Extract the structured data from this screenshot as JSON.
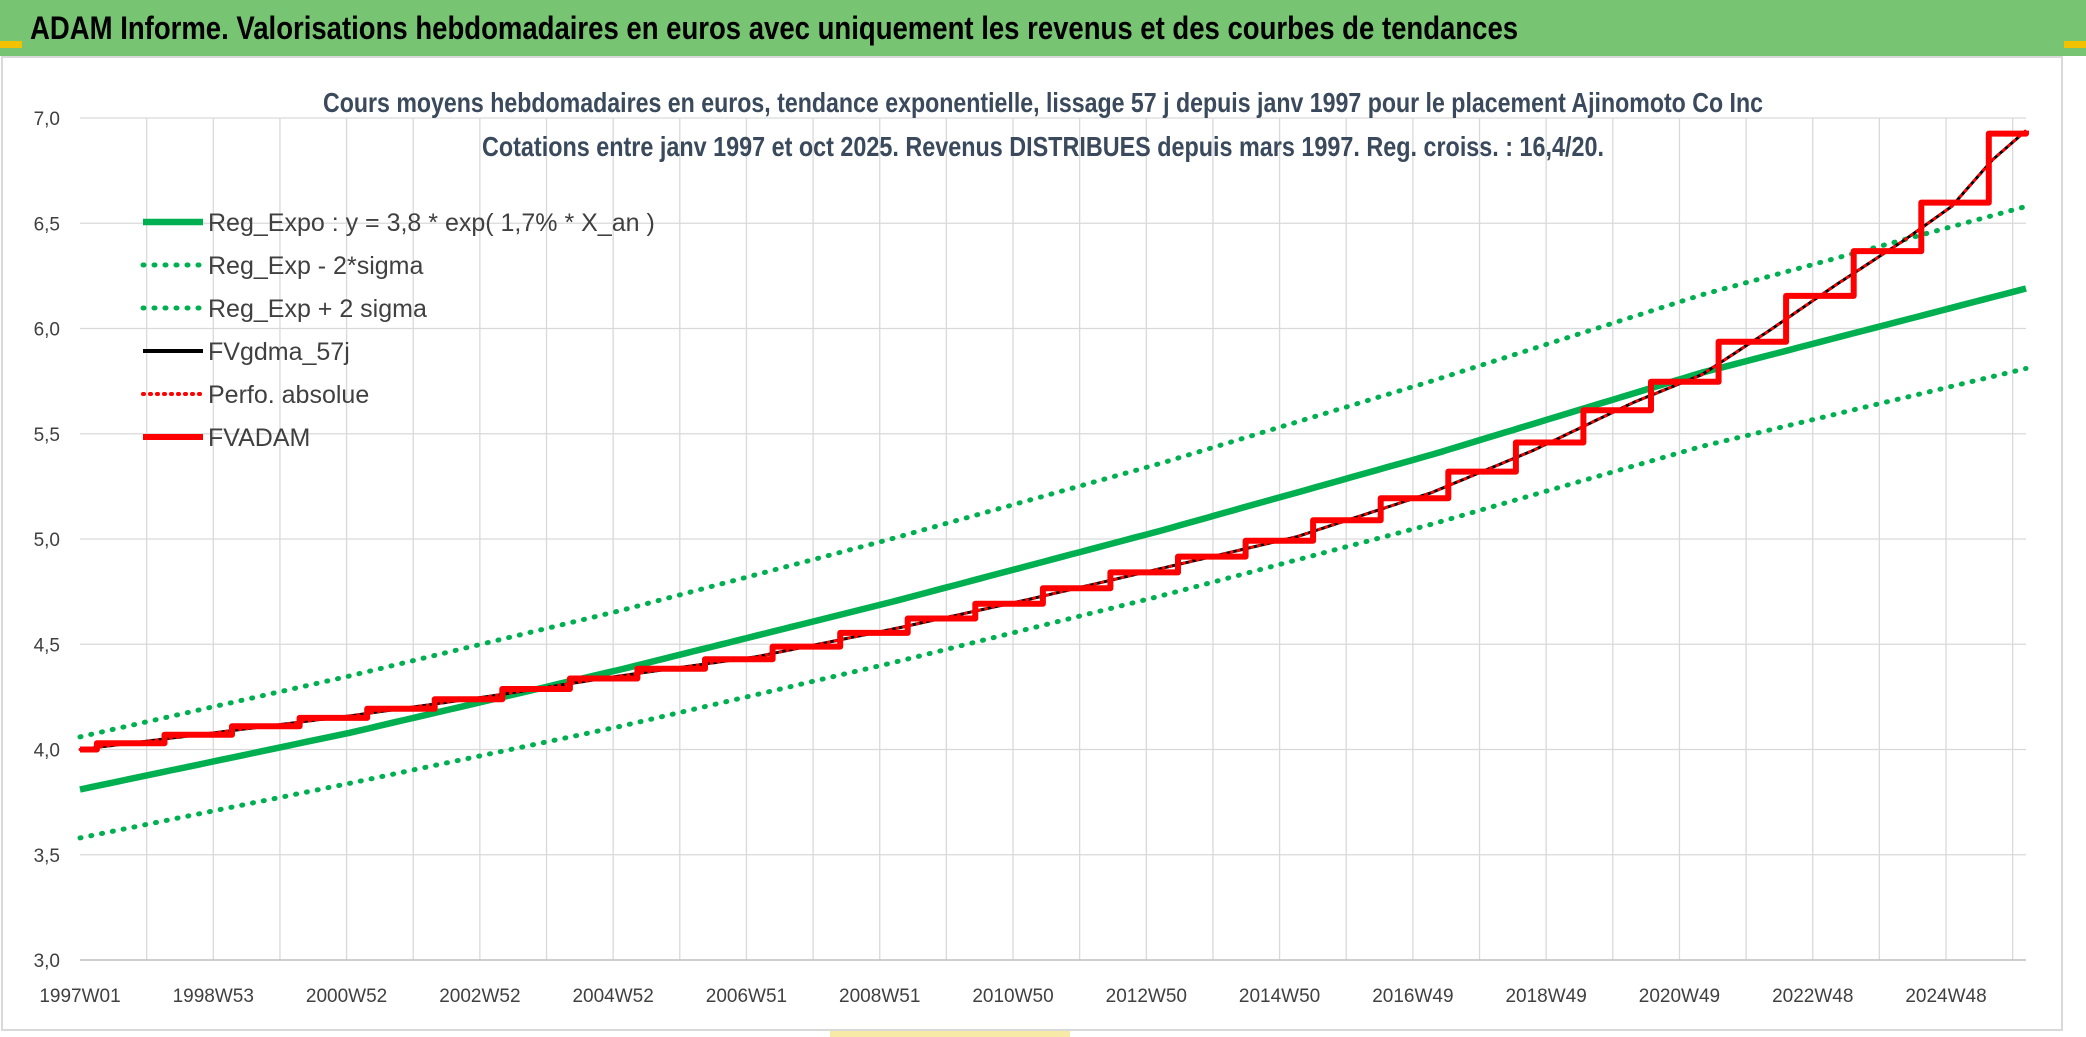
{
  "banner": {
    "title": "ADAM Informe. Valorisations hebdomadaires en euros avec uniquement les revenus et des courbes de tendances"
  },
  "colors": {
    "banner_bg": "#77c472",
    "trend": "#00b050",
    "fvgdma": "#000000",
    "fvadam": "#ff0000",
    "grid": "#d9d9d9",
    "accent": "#f2c200"
  },
  "chart_data": {
    "type": "line",
    "title": "Cours moyens hebdomadaires en euros, tendance exponentielle, lissage 57 j depuis janv 1997 pour le placement Ajinomoto Co Inc",
    "subtitle": "Cotations entre janv 1997 et oct 2025. Revenus DISTRIBUES depuis mars 1997. Reg. croiss. : 16,4/20.",
    "ylim": [
      3.0,
      7.0
    ],
    "yticks": [
      "3,0",
      "3,5",
      "4,0",
      "4,5",
      "5,0",
      "5,5",
      "6,0",
      "6,5",
      "7,0"
    ],
    "xticks": [
      "1997W01",
      "1998W53",
      "2000W52",
      "2002W52",
      "2004W52",
      "2006W51",
      "2008W51",
      "2010W50",
      "2012W50",
      "2014W50",
      "2016W49",
      "2018W49",
      "2020W49",
      "2022W48",
      "2024W48"
    ],
    "x_range": [
      1997.0,
      2025.8
    ],
    "legend_position": "top-left",
    "grid": true,
    "legend": [
      "Reg_Expo : y = 3,8 * exp( 1,7% *  X_an )",
      "Reg_Exp - 2*sigma",
      "Reg_Exp + 2 sigma",
      "FVgdma_57j",
      "Perfo. absolue",
      "FVADAM"
    ],
    "series": [
      {
        "name": "Reg_Expo : y = 3,8 * exp( 1,7% *  X_an )",
        "style": "solid",
        "x": [
          1997.0,
          2001.0,
          2005.0,
          2009.0,
          2013.0,
          2017.0,
          2021.0,
          2025.8
        ],
        "y": [
          3.81,
          4.08,
          4.38,
          4.7,
          5.04,
          5.4,
          5.79,
          6.19
        ]
      },
      {
        "name": "Reg_Exp - 2*sigma",
        "style": "dotted",
        "x": [
          1997.0,
          2001.0,
          2005.0,
          2009.0,
          2013.0,
          2017.0,
          2021.0,
          2025.8
        ],
        "y": [
          3.58,
          3.84,
          4.11,
          4.41,
          4.73,
          5.07,
          5.44,
          5.81
        ]
      },
      {
        "name": "Reg_Exp + 2 sigma",
        "style": "dotted",
        "x": [
          1997.0,
          2001.0,
          2005.0,
          2009.0,
          2013.0,
          2017.0,
          2021.0,
          2025.8
        ],
        "y": [
          4.06,
          4.35,
          4.66,
          5.0,
          5.36,
          5.75,
          6.16,
          6.58
        ]
      },
      {
        "name": "FVgdma_57j",
        "style": "solid",
        "x": [
          1997.0,
          1999.0,
          2001.0,
          2003.0,
          2005.0,
          2007.0,
          2009.0,
          2011.0,
          2013.0,
          2015.0,
          2017.0,
          2018.5,
          2020.0,
          2021.0,
          2022.0,
          2023.0,
          2024.0,
          2024.7,
          2025.3,
          2025.8
        ],
        "y": [
          4.0,
          4.08,
          4.16,
          4.25,
          4.35,
          4.44,
          4.57,
          4.71,
          4.86,
          5.01,
          5.22,
          5.42,
          5.65,
          5.78,
          5.99,
          6.21,
          6.42,
          6.58,
          6.8,
          6.94
        ]
      },
      {
        "name": "Perfo. absolue",
        "style": "dotted",
        "x": [
          1997.0,
          1999.0,
          2001.0,
          2003.0,
          2005.0,
          2007.0,
          2009.0,
          2011.0,
          2013.0,
          2015.0,
          2017.0,
          2018.5,
          2020.0,
          2021.0,
          2022.0,
          2023.0,
          2024.0,
          2024.7,
          2025.3,
          2025.8
        ],
        "y": [
          4.0,
          4.08,
          4.16,
          4.25,
          4.35,
          4.44,
          4.57,
          4.71,
          4.86,
          5.01,
          5.22,
          5.42,
          5.65,
          5.78,
          5.99,
          6.21,
          6.42,
          6.58,
          6.8,
          6.94
        ]
      },
      {
        "name": "FVADAM",
        "style": "step",
        "x": [
          1997.0,
          1999.0,
          2001.0,
          2003.0,
          2005.0,
          2007.0,
          2009.0,
          2011.0,
          2013.0,
          2015.0,
          2017.0,
          2018.5,
          2020.0,
          2021.0,
          2022.0,
          2023.0,
          2024.0,
          2024.7,
          2025.3,
          2025.8
        ],
        "y": [
          4.0,
          4.08,
          4.16,
          4.25,
          4.35,
          4.44,
          4.57,
          4.71,
          4.86,
          5.01,
          5.22,
          5.42,
          5.65,
          5.78,
          5.99,
          6.21,
          6.42,
          6.58,
          6.8,
          6.94
        ]
      }
    ]
  }
}
